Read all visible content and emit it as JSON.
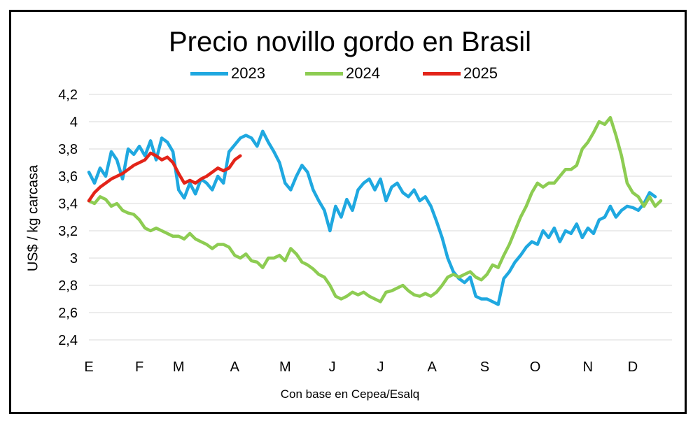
{
  "chart_data": {
    "type": "line",
    "title": "Precio novillo gordo en Brasil",
    "ylabel": "US$ / kg carcasa",
    "note": "Con base en Cepea/Esalq",
    "ylim": [
      2.4,
      4.2
    ],
    "yticks": [
      "2,4",
      "2,6",
      "2,8",
      "3",
      "3,2",
      "3,4",
      "3,6",
      "3,8",
      "4",
      "4,2"
    ],
    "xlim": [
      0,
      52
    ],
    "xticks": [
      {
        "label": "E",
        "week": 0
      },
      {
        "label": "F",
        "week": 4.5
      },
      {
        "label": "M",
        "week": 8
      },
      {
        "label": "A",
        "week": 13
      },
      {
        "label": "M",
        "week": 17.5
      },
      {
        "label": "J",
        "week": 21.7
      },
      {
        "label": "J",
        "week": 26
      },
      {
        "label": "A",
        "week": 30.6
      },
      {
        "label": "S",
        "week": 35.3
      },
      {
        "label": "O",
        "week": 39.8
      },
      {
        "label": "N",
        "week": 44.5
      },
      {
        "label": "D",
        "week": 48.5
      }
    ],
    "grid": true,
    "legend_position": "top",
    "series": [
      {
        "name": "2023",
        "color": "#1fa8e0",
        "points": [
          [
            0,
            3.63
          ],
          [
            0.5,
            3.55
          ],
          [
            1,
            3.66
          ],
          [
            1.5,
            3.6
          ],
          [
            2,
            3.78
          ],
          [
            2.5,
            3.72
          ],
          [
            3,
            3.58
          ],
          [
            3.5,
            3.8
          ],
          [
            4,
            3.76
          ],
          [
            4.5,
            3.82
          ],
          [
            5,
            3.75
          ],
          [
            5.5,
            3.86
          ],
          [
            6,
            3.72
          ],
          [
            6.5,
            3.88
          ],
          [
            7,
            3.85
          ],
          [
            7.5,
            3.78
          ],
          [
            8,
            3.5
          ],
          [
            8.5,
            3.44
          ],
          [
            9,
            3.55
          ],
          [
            9.5,
            3.47
          ],
          [
            10,
            3.58
          ],
          [
            10.5,
            3.55
          ],
          [
            11,
            3.5
          ],
          [
            11.5,
            3.6
          ],
          [
            12,
            3.55
          ],
          [
            12.5,
            3.78
          ],
          [
            13,
            3.83
          ],
          [
            13.5,
            3.88
          ],
          [
            14,
            3.9
          ],
          [
            14.5,
            3.88
          ],
          [
            15,
            3.82
          ],
          [
            15.5,
            3.93
          ],
          [
            16,
            3.85
          ],
          [
            16.5,
            3.78
          ],
          [
            17,
            3.7
          ],
          [
            17.5,
            3.55
          ],
          [
            18,
            3.5
          ],
          [
            18.5,
            3.6
          ],
          [
            19,
            3.68
          ],
          [
            19.5,
            3.63
          ],
          [
            20,
            3.5
          ],
          [
            20.5,
            3.42
          ],
          [
            21,
            3.35
          ],
          [
            21.5,
            3.2
          ],
          [
            22,
            3.38
          ],
          [
            22.5,
            3.3
          ],
          [
            23,
            3.43
          ],
          [
            23.5,
            3.35
          ],
          [
            24,
            3.5
          ],
          [
            24.5,
            3.55
          ],
          [
            25,
            3.58
          ],
          [
            25.5,
            3.5
          ],
          [
            26,
            3.58
          ],
          [
            26.5,
            3.42
          ],
          [
            27,
            3.52
          ],
          [
            27.5,
            3.55
          ],
          [
            28,
            3.48
          ],
          [
            28.5,
            3.45
          ],
          [
            29,
            3.5
          ],
          [
            29.5,
            3.42
          ],
          [
            30,
            3.45
          ],
          [
            30.5,
            3.38
          ],
          [
            31,
            3.27
          ],
          [
            31.5,
            3.15
          ],
          [
            32,
            3.0
          ],
          [
            32.5,
            2.9
          ],
          [
            33,
            2.85
          ],
          [
            33.5,
            2.82
          ],
          [
            34,
            2.86
          ],
          [
            34.5,
            2.72
          ],
          [
            35,
            2.7
          ],
          [
            35.5,
            2.7
          ],
          [
            36,
            2.68
          ],
          [
            36.5,
            2.66
          ],
          [
            37,
            2.85
          ],
          [
            37.5,
            2.9
          ],
          [
            38,
            2.97
          ],
          [
            38.5,
            3.02
          ],
          [
            39,
            3.08
          ],
          [
            39.5,
            3.12
          ],
          [
            40,
            3.1
          ],
          [
            40.5,
            3.2
          ],
          [
            41,
            3.15
          ],
          [
            41.5,
            3.22
          ],
          [
            42,
            3.12
          ],
          [
            42.5,
            3.2
          ],
          [
            43,
            3.18
          ],
          [
            43.5,
            3.25
          ],
          [
            44,
            3.15
          ],
          [
            44.5,
            3.22
          ],
          [
            45,
            3.18
          ],
          [
            45.5,
            3.28
          ],
          [
            46,
            3.3
          ],
          [
            46.5,
            3.38
          ],
          [
            47,
            3.3
          ],
          [
            47.5,
            3.35
          ],
          [
            48,
            3.38
          ],
          [
            48.5,
            3.37
          ],
          [
            49,
            3.35
          ],
          [
            49.5,
            3.4
          ],
          [
            50,
            3.48
          ],
          [
            50.5,
            3.45
          ]
        ]
      },
      {
        "name": "2024",
        "color": "#8dcc52",
        "points": [
          [
            0,
            3.42
          ],
          [
            0.5,
            3.4
          ],
          [
            1,
            3.45
          ],
          [
            1.5,
            3.43
          ],
          [
            2,
            3.38
          ],
          [
            2.5,
            3.4
          ],
          [
            3,
            3.35
          ],
          [
            3.5,
            3.33
          ],
          [
            4,
            3.32
          ],
          [
            4.5,
            3.28
          ],
          [
            5,
            3.22
          ],
          [
            5.5,
            3.2
          ],
          [
            6,
            3.22
          ],
          [
            6.5,
            3.2
          ],
          [
            7,
            3.18
          ],
          [
            7.5,
            3.16
          ],
          [
            8,
            3.16
          ],
          [
            8.5,
            3.14
          ],
          [
            9,
            3.18
          ],
          [
            9.5,
            3.14
          ],
          [
            10,
            3.12
          ],
          [
            10.5,
            3.1
          ],
          [
            11,
            3.07
          ],
          [
            11.5,
            3.1
          ],
          [
            12,
            3.1
          ],
          [
            12.5,
            3.08
          ],
          [
            13,
            3.02
          ],
          [
            13.5,
            3.0
          ],
          [
            14,
            3.03
          ],
          [
            14.5,
            2.98
          ],
          [
            15,
            2.97
          ],
          [
            15.5,
            2.93
          ],
          [
            16,
            3.0
          ],
          [
            16.5,
            3.0
          ],
          [
            17,
            3.02
          ],
          [
            17.5,
            2.98
          ],
          [
            18,
            3.07
          ],
          [
            18.5,
            3.03
          ],
          [
            19,
            2.97
          ],
          [
            19.5,
            2.95
          ],
          [
            20,
            2.92
          ],
          [
            20.5,
            2.88
          ],
          [
            21,
            2.86
          ],
          [
            21.5,
            2.8
          ],
          [
            22,
            2.72
          ],
          [
            22.5,
            2.7
          ],
          [
            23,
            2.72
          ],
          [
            23.5,
            2.75
          ],
          [
            24,
            2.73
          ],
          [
            24.5,
            2.75
          ],
          [
            25,
            2.72
          ],
          [
            25.5,
            2.7
          ],
          [
            26,
            2.68
          ],
          [
            26.5,
            2.75
          ],
          [
            27,
            2.76
          ],
          [
            27.5,
            2.78
          ],
          [
            28,
            2.8
          ],
          [
            28.5,
            2.76
          ],
          [
            29,
            2.73
          ],
          [
            29.5,
            2.72
          ],
          [
            30,
            2.74
          ],
          [
            30.5,
            2.72
          ],
          [
            31,
            2.75
          ],
          [
            31.5,
            2.8
          ],
          [
            32,
            2.86
          ],
          [
            32.5,
            2.88
          ],
          [
            33,
            2.86
          ],
          [
            33.5,
            2.88
          ],
          [
            34,
            2.9
          ],
          [
            34.5,
            2.86
          ],
          [
            35,
            2.84
          ],
          [
            35.5,
            2.88
          ],
          [
            36,
            2.95
          ],
          [
            36.5,
            2.93
          ],
          [
            37,
            3.02
          ],
          [
            37.5,
            3.1
          ],
          [
            38,
            3.2
          ],
          [
            38.5,
            3.3
          ],
          [
            39,
            3.38
          ],
          [
            39.5,
            3.48
          ],
          [
            40,
            3.55
          ],
          [
            40.5,
            3.52
          ],
          [
            41,
            3.55
          ],
          [
            41.5,
            3.55
          ],
          [
            42,
            3.6
          ],
          [
            42.5,
            3.65
          ],
          [
            43,
            3.65
          ],
          [
            43.5,
            3.68
          ],
          [
            44,
            3.8
          ],
          [
            44.5,
            3.85
          ],
          [
            45,
            3.92
          ],
          [
            45.5,
            4.0
          ],
          [
            46,
            3.98
          ],
          [
            46.5,
            4.03
          ],
          [
            47,
            3.9
          ],
          [
            47.5,
            3.75
          ],
          [
            48,
            3.55
          ],
          [
            48.5,
            3.48
          ],
          [
            49,
            3.45
          ],
          [
            49.5,
            3.38
          ],
          [
            50,
            3.45
          ],
          [
            50.5,
            3.38
          ],
          [
            51,
            3.42
          ]
        ]
      },
      {
        "name": "2025",
        "color": "#e32419",
        "points": [
          [
            0,
            3.42
          ],
          [
            0.5,
            3.48
          ],
          [
            1,
            3.52
          ],
          [
            1.5,
            3.55
          ],
          [
            2,
            3.58
          ],
          [
            2.5,
            3.6
          ],
          [
            3,
            3.62
          ],
          [
            3.5,
            3.65
          ],
          [
            4,
            3.68
          ],
          [
            4.5,
            3.7
          ],
          [
            5,
            3.72
          ],
          [
            5.5,
            3.77
          ],
          [
            6,
            3.75
          ],
          [
            6.5,
            3.72
          ],
          [
            7,
            3.74
          ],
          [
            7.5,
            3.7
          ],
          [
            8,
            3.62
          ],
          [
            8.5,
            3.55
          ],
          [
            9,
            3.57
          ],
          [
            9.5,
            3.55
          ],
          [
            10,
            3.58
          ],
          [
            10.5,
            3.6
          ],
          [
            11,
            3.63
          ],
          [
            11.5,
            3.66
          ],
          [
            12,
            3.64
          ],
          [
            12.5,
            3.66
          ],
          [
            13,
            3.72
          ],
          [
            13.5,
            3.75
          ]
        ]
      }
    ]
  }
}
